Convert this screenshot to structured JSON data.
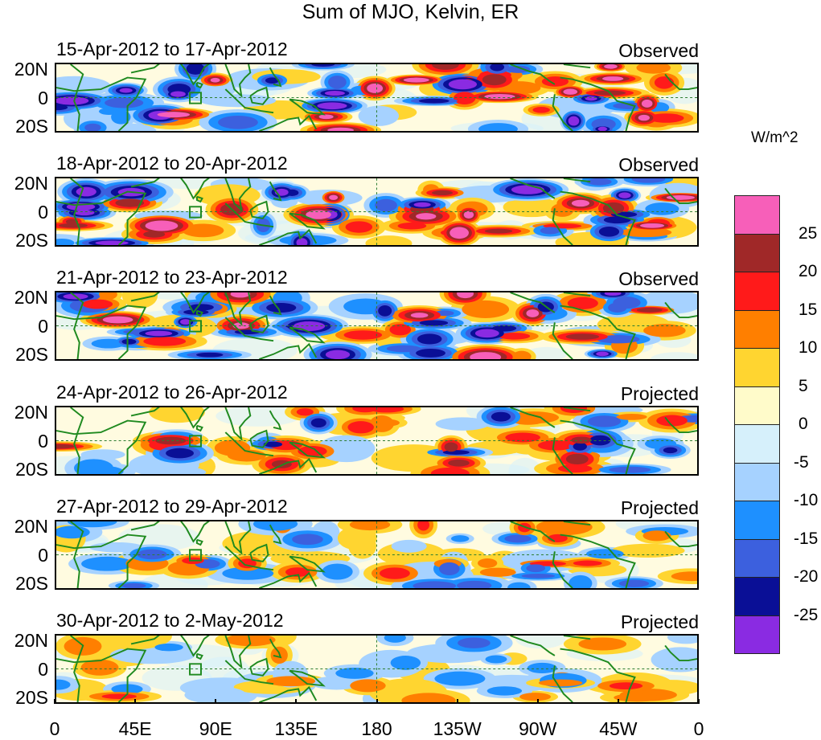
{
  "title": "Sum of MJO, Kelvin, ER",
  "lat_labels": [
    "20N",
    "0",
    "20S"
  ],
  "lon_labels": [
    "0",
    "45E",
    "90E",
    "135E",
    "180",
    "135W",
    "90W",
    "45W",
    "0"
  ],
  "panels": [
    {
      "label": "15-Apr-2012 to 17-Apr-2012",
      "status": "Observed",
      "intensity": 1.0
    },
    {
      "label": "18-Apr-2012 to 20-Apr-2012",
      "status": "Observed",
      "intensity": 1.0
    },
    {
      "label": "21-Apr-2012 to 23-Apr-2012",
      "status": "Observed",
      "intensity": 0.95
    },
    {
      "label": "24-Apr-2012 to 26-Apr-2012",
      "status": "Projected",
      "intensity": 0.7
    },
    {
      "label": "27-Apr-2012 to 29-Apr-2012",
      "status": "Projected",
      "intensity": 0.55
    },
    {
      "label": "30-Apr-2012 to 2-May-2012",
      "status": "Projected",
      "intensity": 0.45
    }
  ],
  "legend": {
    "units": "W/m^2",
    "colors": [
      "#f75fb9",
      "#a02828",
      "#ff1a1a",
      "#ff7f00",
      "#ffd530",
      "#fffbca",
      "#d6f0fb",
      "#a6d2ff",
      "#1e90ff",
      "#3c60de",
      "#0a0f96",
      "#8a2be2"
    ],
    "tick_labels": [
      "25",
      "20",
      "15",
      "10",
      "5",
      "0",
      "-5",
      "-10",
      "-15",
      "-20",
      "-25"
    ]
  }
}
